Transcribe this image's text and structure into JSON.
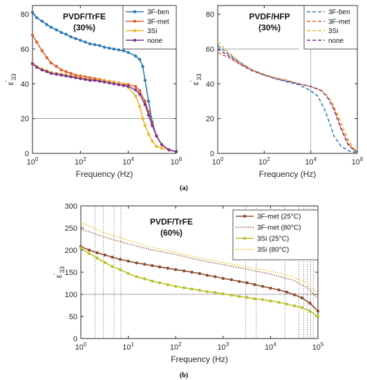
{
  "chart_data": [
    {
      "id": "a1",
      "type": "line",
      "title": "PVDF/TrFE\n(30%)",
      "xlabel": "Frequency (Hz)",
      "ylabel": "ε'33",
      "xscale": "log",
      "xlim": [
        1,
        1000000
      ],
      "ylim": [
        0,
        85
      ],
      "yticks": [
        0,
        20,
        40,
        60,
        80
      ],
      "xtick_labels": [
        "10^0",
        "10^2",
        "10^4",
        "10^6"
      ],
      "legend_position": "top-right",
      "reference_line_y": 20,
      "series": [
        {
          "name": "3F-ben",
          "color": "#2a7ab8",
          "style": "solid-marker",
          "x": [
            1,
            1.5,
            2.5,
            4,
            6,
            10,
            16,
            25,
            40,
            63,
            100,
            160,
            250,
            400,
            630,
            1000,
            1600,
            2500,
            4000,
            6300,
            10000,
            20000,
            30000,
            40000,
            50000,
            70000,
            100000,
            150000,
            250000,
            500000,
            1000000
          ],
          "y": [
            81,
            78,
            76,
            74,
            72.5,
            71,
            69.5,
            68.5,
            67,
            66,
            65,
            64,
            63,
            62.5,
            62,
            61,
            60.5,
            60,
            59.5,
            59,
            58,
            56,
            54,
            50,
            42,
            30,
            18,
            10,
            5,
            2,
            1
          ]
        },
        {
          "name": "3F-met",
          "color": "#e0602a",
          "style": "solid-marker",
          "x": [
            1,
            1.5,
            2.5,
            4,
            6,
            10,
            16,
            25,
            40,
            63,
            100,
            160,
            250,
            400,
            630,
            1000,
            1600,
            2500,
            4000,
            6300,
            10000,
            20000,
            30000,
            50000,
            70000,
            100000,
            150000,
            250000,
            500000,
            1000000
          ],
          "y": [
            68,
            64,
            59,
            55,
            52,
            50,
            48,
            47,
            46,
            45,
            44.5,
            44,
            43.5,
            43,
            42.5,
            42,
            41.5,
            41,
            40.5,
            40,
            39.5,
            38.5,
            36,
            30,
            24,
            17,
            10,
            5,
            2,
            1
          ]
        },
        {
          "name": "3Si",
          "color": "#f3b42a",
          "style": "solid-marker",
          "x": [
            1,
            1.5,
            2.5,
            4,
            6,
            10,
            16,
            25,
            40,
            63,
            100,
            160,
            250,
            400,
            630,
            1000,
            1600,
            2500,
            4000,
            6300,
            10000,
            20000,
            30000,
            40000,
            50000,
            70000,
            100000,
            150000,
            250000,
            500000,
            1000000
          ],
          "y": [
            52,
            50,
            48.5,
            47.5,
            46.5,
            46,
            45.5,
            45,
            44.5,
            44,
            43.5,
            43,
            42.5,
            42.5,
            42,
            42,
            41.5,
            41,
            40.5,
            40,
            38,
            33,
            27,
            20,
            16,
            11,
            7,
            4,
            3,
            2,
            1
          ]
        },
        {
          "name": "none",
          "color": "#7b3294",
          "style": "solid-marker",
          "x": [
            1,
            1.5,
            2.5,
            4,
            6,
            10,
            16,
            25,
            40,
            63,
            100,
            160,
            250,
            400,
            630,
            1000,
            1600,
            2500,
            4000,
            6300,
            10000,
            20000,
            30000,
            50000,
            70000,
            100000,
            150000,
            250000,
            500000,
            1000000
          ],
          "y": [
            51.5,
            49.5,
            48,
            47,
            46,
            45.5,
            45,
            44.5,
            44,
            43.5,
            43,
            42.5,
            42,
            42,
            41.5,
            41,
            40.5,
            40,
            39.5,
            39,
            38.5,
            36.5,
            34,
            28,
            22,
            16,
            10,
            5,
            2,
            1
          ]
        }
      ]
    },
    {
      "id": "a2",
      "type": "line",
      "title": "PVDF/HFP\n(30%)",
      "xlabel": "Frequency (Hz)",
      "ylabel": "ε'33",
      "xscale": "log",
      "xlim": [
        1,
        1000000
      ],
      "ylim": [
        0,
        85
      ],
      "yticks": [
        0,
        20,
        40,
        60,
        80
      ],
      "xtick_labels": [
        "10^0",
        "10^2",
        "10^4",
        "10^6"
      ],
      "legend_position": "top-right",
      "series": [
        {
          "name": "3F-ben",
          "color": "#2a7ab8",
          "style": "dashed",
          "x": [
            1,
            3,
            10,
            30,
            100,
            300,
            1000,
            3000,
            10000,
            20000,
            40000,
            70000,
            100000,
            200000,
            500000,
            1000000
          ],
          "y": [
            62,
            57,
            52,
            48,
            45,
            43,
            41,
            39.5,
            36,
            33,
            25,
            16,
            10,
            4,
            1,
            0.5
          ]
        },
        {
          "name": "3F-met",
          "color": "#e0602a",
          "style": "dashed",
          "x": [
            1,
            3,
            10,
            30,
            100,
            300,
            1000,
            3000,
            10000,
            30000,
            60000,
            100000,
            200000,
            400000,
            700000,
            1000000
          ],
          "y": [
            58,
            55,
            51,
            48,
            45.5,
            43.5,
            42,
            40,
            38.5,
            36,
            32,
            26,
            15,
            6,
            2,
            1
          ]
        },
        {
          "name": "3Si",
          "color": "#f3b42a",
          "style": "dashed",
          "x": [
            1,
            3,
            10,
            30,
            100,
            300,
            1000,
            3000,
            10000,
            30000,
            60000,
            100000,
            200000,
            400000,
            700000,
            1000000
          ],
          "y": [
            64,
            58,
            52,
            48,
            45.5,
            43.5,
            42,
            40,
            38.5,
            36,
            32,
            27,
            18,
            8,
            3,
            1.5
          ]
        },
        {
          "name": "none",
          "color": "#7b3294",
          "style": "dashed",
          "x": [
            1,
            3,
            10,
            30,
            100,
            300,
            1000,
            3000,
            10000,
            30000,
            60000,
            100000,
            200000,
            400000,
            700000,
            1000000
          ],
          "y": [
            60,
            56,
            51,
            47.5,
            45,
            43,
            41.5,
            40,
            38.5,
            36,
            31,
            25,
            14,
            5,
            2,
            1
          ]
        }
      ]
    },
    {
      "id": "b",
      "type": "line",
      "title": "PVDF/TrFE\n(60%)",
      "xlabel": "Frequency (Hz)",
      "ylabel": "ε'33",
      "xscale": "log",
      "xlim": [
        1,
        100000
      ],
      "ylim": [
        0,
        300
      ],
      "yticks": [
        0,
        50,
        100,
        150,
        200,
        250,
        300
      ],
      "xtick_labels": [
        "10^0",
        "10^1",
        "10^2",
        "10^3",
        "10^4",
        "10^5"
      ],
      "legend_position": "top-right",
      "reference_line_y": 100,
      "series": [
        {
          "name": "3F-met (25°C)",
          "color": "#8b4a2b",
          "style": "solid-marker",
          "x": [
            1,
            1.5,
            2.2,
            3.2,
            4.6,
            6.8,
            10,
            15,
            22,
            32,
            46,
            68,
            100,
            150,
            220,
            320,
            460,
            680,
            1000,
            1500,
            2200,
            3200,
            4600,
            6800,
            10000,
            15000,
            22000,
            32000,
            46000,
            68000,
            100000
          ],
          "y": [
            208,
            200,
            194,
            189,
            184,
            179,
            175,
            171,
            168,
            165,
            162,
            159,
            156,
            153,
            150,
            147,
            143,
            140,
            136,
            133,
            129,
            126,
            122,
            118,
            114,
            110,
            105,
            99,
            92,
            80,
            62
          ]
        },
        {
          "name": "3F-met (80°C)",
          "color": "#8b4a2b",
          "style": "dotted",
          "x": [
            1,
            3,
            10,
            30,
            100,
            300,
            1000,
            3000,
            10000,
            30000,
            60000,
            100000
          ],
          "y": [
            248,
            230,
            214,
            201,
            190,
            178,
            167,
            157,
            146,
            132,
            115,
            90
          ]
        },
        {
          "name": "3Si (25°C)",
          "color": "#b8c22a",
          "style": "solid-marker",
          "x": [
            1,
            1.5,
            2.2,
            3.2,
            4.6,
            6.8,
            10,
            15,
            22,
            32,
            46,
            68,
            100,
            150,
            220,
            320,
            460,
            680,
            1000,
            1500,
            2200,
            3200,
            4600,
            6800,
            10000,
            15000,
            22000,
            32000,
            46000,
            68000,
            100000
          ],
          "y": [
            205,
            192,
            182,
            172,
            163,
            156,
            147,
            140,
            135,
            130,
            126,
            122,
            118,
            115,
            112,
            109,
            106,
            104,
            101,
            98,
            95,
            93,
            90,
            88,
            85,
            82,
            78,
            74,
            70,
            62,
            50
          ]
        },
        {
          "name": "3Si (80°C)",
          "color": "#d9c21e",
          "style": "dotted",
          "x": [
            1,
            3,
            10,
            30,
            100,
            300,
            1000,
            3000,
            10000,
            30000,
            60000,
            100000
          ],
          "y": [
            262,
            240,
            222,
            207,
            195,
            183,
            172,
            162,
            152,
            140,
            124,
            100
          ]
        }
      ]
    }
  ],
  "captions": {
    "a": "(a)",
    "b": "(b)"
  }
}
